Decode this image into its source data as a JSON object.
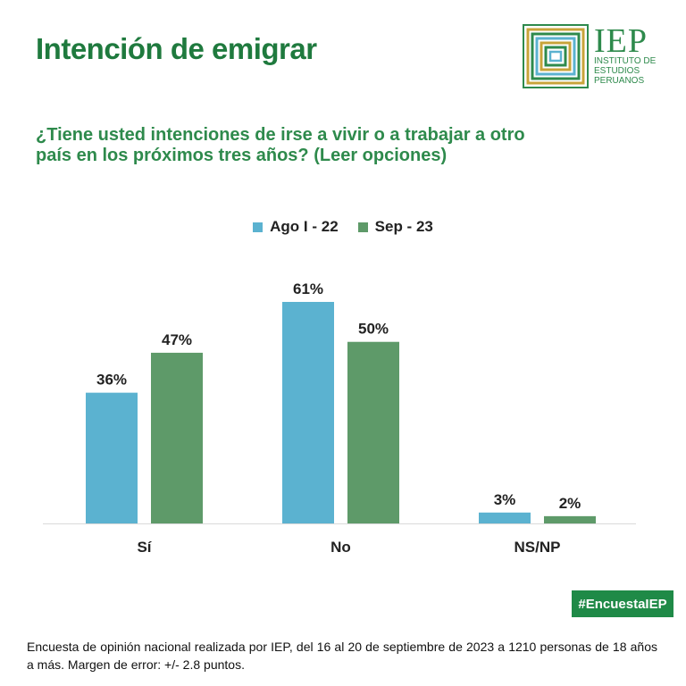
{
  "header": {
    "title": "Intención de emigrar",
    "question": "¿Tiene usted intenciones de irse a vivir o a trabajar a otro país en los próximos tres años? (Leer opciones)"
  },
  "logo": {
    "acronym": "IEP",
    "subtitle": "INSTITUTO DE\nESTUDIOS\nPERUANOS"
  },
  "colors": {
    "series1": "#5bb2d0",
    "series2": "#5e9a69",
    "brand": "#1f8a47"
  },
  "chart_data": {
    "type": "bar",
    "title": "",
    "xlabel": "",
    "ylabel": "",
    "ylim": [
      0,
      70
    ],
    "legend_position": "top-center",
    "grid": false,
    "categories": [
      "Sí",
      "No",
      "NS/NP"
    ],
    "series": [
      {
        "name": "Ago I - 22",
        "values": [
          36,
          61,
          3
        ],
        "labels": [
          "36%",
          "61%",
          "3%"
        ]
      },
      {
        "name": "Sep - 23",
        "values": [
          47,
          50,
          2
        ],
        "labels": [
          "47%",
          "50%",
          "2%"
        ]
      }
    ]
  },
  "hashtag": "#EncuestaIEP",
  "footnote": "Encuesta de opinión nacional realizada por IEP, del 16 al 20 de septiembre de 2023 a 1210 personas de 18 años a más. Margen de error: +/- 2.8 puntos."
}
